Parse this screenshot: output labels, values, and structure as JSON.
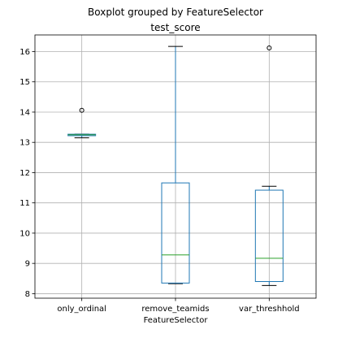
{
  "chart_data": {
    "type": "box",
    "suptitle": "Boxplot grouped by FeatureSelector",
    "title": "test_score",
    "xlabel": "FeatureSelector",
    "ylabel": "",
    "categories": [
      "only_ordinal",
      "remove_teamids",
      "var_threshhold"
    ],
    "ylim": [
      7.85,
      16.55
    ],
    "yticks": [
      8,
      9,
      10,
      11,
      12,
      13,
      14,
      15,
      16
    ],
    "grid": true,
    "boxes": [
      {
        "whislo": 13.15,
        "q1": 13.22,
        "med": 13.25,
        "q3": 13.27,
        "whishi": 13.27,
        "fliers": [
          14.06
        ]
      },
      {
        "whislo": 8.33,
        "q1": 8.35,
        "med": 9.28,
        "q3": 11.66,
        "whishi": 16.17,
        "fliers": []
      },
      {
        "whislo": 8.27,
        "q1": 8.4,
        "med": 9.17,
        "q3": 11.42,
        "whishi": 11.55,
        "fliers": [
          16.12
        ]
      }
    ],
    "colors": {
      "box": "#1f77b4",
      "median": "#2ca02c",
      "whisker": "#000000",
      "grid": "#b0b0b0"
    }
  }
}
